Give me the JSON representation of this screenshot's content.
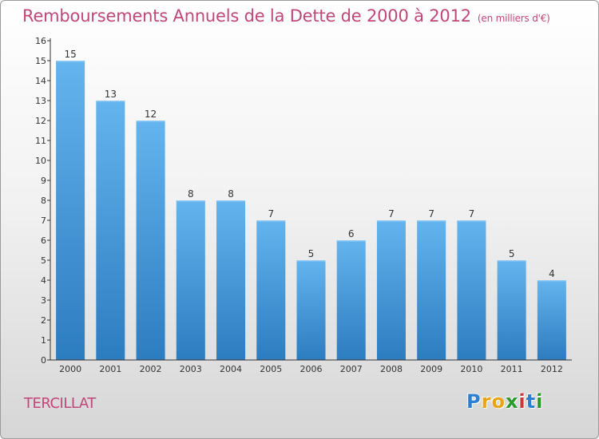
{
  "header": {
    "title": "Remboursements Annuels de la Dette de 2000 à 2012",
    "unit": "(en milliers d'€)"
  },
  "commune": "TERCILLAT",
  "logo": {
    "text": "Proxiti",
    "letter_colors": [
      "#2d7fd0",
      "#e8a412",
      "#e8a412",
      "#2a9a2a",
      "#c83a3a",
      "#2d7fd0",
      "#2a9a2a"
    ]
  },
  "colors": {
    "title": "#c0477a",
    "bar_top": "#64b4ef",
    "bar_bottom": "#2c7cc0",
    "axis": "#333333"
  },
  "chart_data": {
    "type": "bar",
    "title": "Remboursements Annuels de la Dette de 2000 à 2012",
    "xlabel": "",
    "ylabel": "",
    "categories": [
      "2000",
      "2001",
      "2002",
      "2003",
      "2004",
      "2005",
      "2006",
      "2007",
      "2008",
      "2009",
      "2010",
      "2011",
      "2012"
    ],
    "values": [
      15,
      13,
      12,
      8,
      8,
      7,
      5,
      6,
      7,
      7,
      7,
      5,
      4
    ],
    "ylim": [
      0,
      16
    ],
    "yticks": [
      0,
      1,
      2,
      3,
      4,
      5,
      6,
      7,
      8,
      9,
      10,
      11,
      12,
      13,
      14,
      15,
      16
    ],
    "grid": false,
    "legend": "none"
  }
}
